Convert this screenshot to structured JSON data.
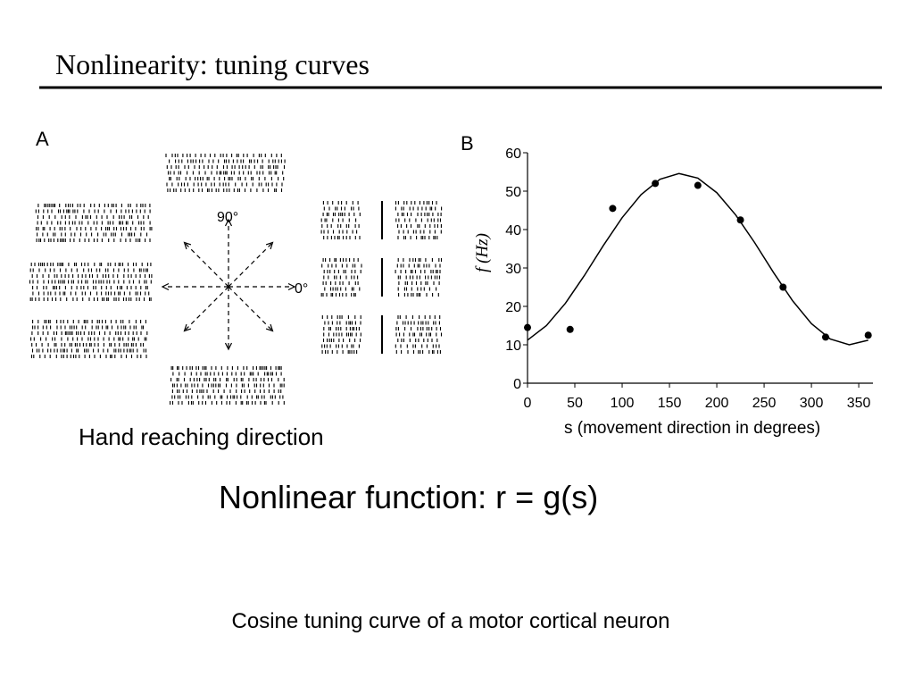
{
  "slide": {
    "title": "Nonlinearity: tuning curves",
    "panel_a": {
      "label": "A",
      "up_label": "90°",
      "right_label": "0°",
      "caption": "Hand reaching direction"
    },
    "panel_b": {
      "label": "B"
    },
    "formula": "Nonlinear function:  r = g(s)",
    "caption": "Cosine tuning curve of a motor cortical neuron"
  },
  "chart_data": {
    "type": "scatter",
    "ylabel": "f (Hz)",
    "xlabel": "s (movement direction in degrees)",
    "series": [
      {
        "mode": "markers",
        "color": "#000000",
        "x": [
          0,
          45,
          90,
          135,
          180,
          225,
          270,
          315,
          360
        ],
        "values": [
          14.5,
          14,
          45.5,
          52,
          51.5,
          42.5,
          25,
          12,
          12.5
        ]
      },
      {
        "mode": "line",
        "color": "#000000",
        "x": [
          0,
          20,
          40,
          60,
          80,
          100,
          120,
          140,
          160,
          180,
          200,
          220,
          240,
          260,
          280,
          300,
          320,
          340,
          360
        ],
        "values": [
          11.2,
          15.0,
          20.8,
          28.0,
          35.8,
          43.1,
          49.1,
          53.1,
          54.6,
          53.4,
          49.6,
          43.8,
          36.6,
          28.8,
          21.5,
          15.5,
          11.5,
          10.0,
          11.2
        ]
      }
    ],
    "xlim": [
      0,
      365
    ],
    "xticks": [
      0,
      50,
      100,
      150,
      200,
      250,
      300,
      350
    ],
    "ylim": [
      0,
      60
    ],
    "yticks": [
      0,
      10,
      20,
      30,
      40,
      50,
      60
    ]
  }
}
